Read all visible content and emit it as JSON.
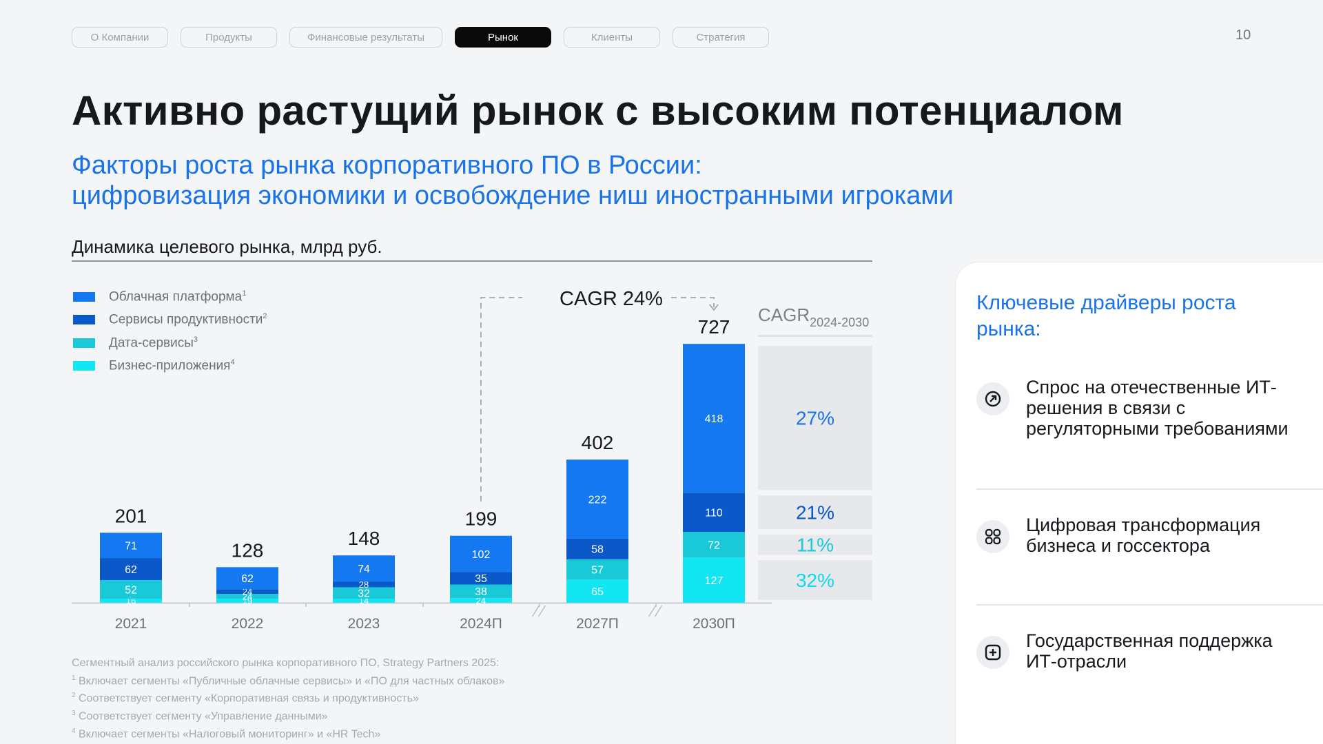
{
  "nav": {
    "tabs": [
      {
        "label": "О Компании",
        "active": false
      },
      {
        "label": "Продукты",
        "active": false
      },
      {
        "label": "Финансовые результаты",
        "active": false
      },
      {
        "label": "Рынок",
        "active": true
      },
      {
        "label": "Клиенты",
        "active": false
      },
      {
        "label": "Стратегия",
        "active": false
      }
    ],
    "page_number": "10"
  },
  "title": "Активно растущий рынок с высоким потенциалом",
  "subtitle": {
    "line1": "Факторы роста рынка корпоративного ПО в России:",
    "line2": "цифровизация экономики и освобождение ниш иностранными игроками"
  },
  "chart_heading": {
    "bold": "Динамика целевого рынка,",
    "unit": " млрд руб."
  },
  "chart_data": {
    "type": "bar",
    "stacked": true,
    "categories": [
      "2021",
      "2022",
      "2023",
      "2024П",
      "2027П",
      "2030П"
    ],
    "totals": [
      201,
      128,
      148,
      199,
      402,
      727
    ],
    "series": [
      {
        "name": "Бизнес-приложения",
        "footnote": "4",
        "color": "#12e6f2",
        "values": [
          16,
          19,
          14,
          24,
          65,
          127
        ]
      },
      {
        "name": "Дата-сервисы",
        "footnote": "3",
        "color": "#19c9d8",
        "values": [
          52,
          24,
          32,
          38,
          57,
          72
        ]
      },
      {
        "name": "Сервисы продуктивности",
        "footnote": "2",
        "color": "#0b58c9",
        "values": [
          62,
          24,
          28,
          35,
          58,
          110
        ]
      },
      {
        "name": "Облачная платформа",
        "footnote": "1",
        "color": "#1479f0",
        "values": [
          71,
          62,
          74,
          102,
          222,
          418
        ]
      }
    ],
    "axis_breaks_after": [
      "2024П",
      "2027П"
    ],
    "cagr_annotation": {
      "label": "CAGR 24%",
      "from": "2024П",
      "to": "2030П"
    },
    "cagr_panel": {
      "title": "CAGR",
      "subscript": "2024-2030",
      "values": [
        {
          "series": "Облачная платформа",
          "value": "27%"
        },
        {
          "series": "Сервисы продуктивности",
          "value": "21%"
        },
        {
          "series": "Дата-сервисы",
          "value": "11%"
        },
        {
          "series": "Бизнес-приложения",
          "value": "32%"
        }
      ]
    }
  },
  "sources": {
    "line0": "Сегментный анализ российского рынка корпоративного ПО, Strategy Partners 2025:",
    "notes": [
      {
        "n": "1",
        "text": "Включает сегменты «Публичные облачные сервисы» и «ПО для частных облаков»"
      },
      {
        "n": "2",
        "text": "Соответствует сегменту «Корпоративная связь и продуктивность»"
      },
      {
        "n": "3",
        "text": "Соответствует сегменту «Управление данными»"
      },
      {
        "n": "4",
        "text": "Включает сегменты «Налоговый мониторинг» и «HR Tech»"
      }
    ]
  },
  "panel": {
    "title": "Ключевые драйверы роста рынка:",
    "drivers": [
      {
        "icon": "arrow-up-right-icon",
        "text": "Спрос на отечественные ИТ-решения в связи с регуляторными требованиями"
      },
      {
        "icon": "grid-icon",
        "text": "Цифровая трансформация бизнеса и госсектора"
      },
      {
        "icon": "plus-square-icon",
        "text": "Государственная поддержка ИТ-отрасли"
      }
    ]
  }
}
